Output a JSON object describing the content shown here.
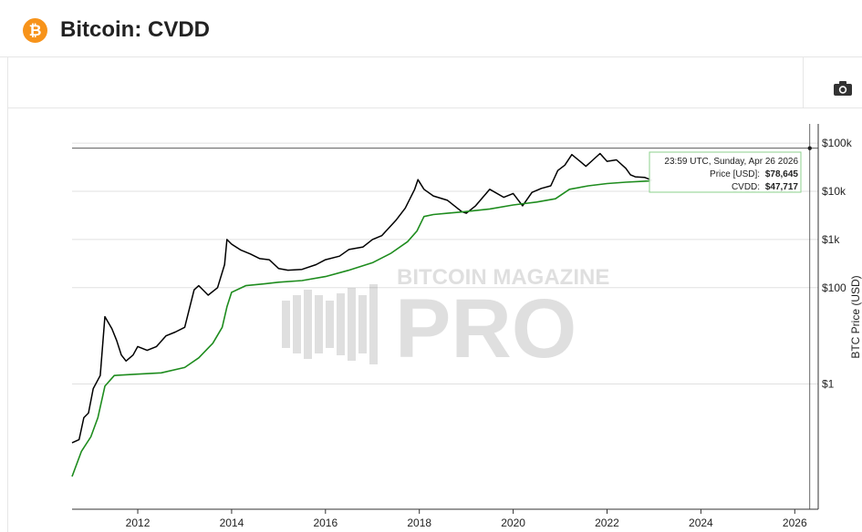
{
  "header": {
    "logo_symbol": "₿",
    "title": "Bitcoin: CVDD"
  },
  "toolbar": {
    "camera_icon": "camera-icon"
  },
  "watermark": {
    "line1": "BITCOIN MAGAZINE",
    "line2": "PRO"
  },
  "tooltip": {
    "date": "23:59 UTC, Sunday, Apr 26 2026",
    "price_label": "Price [USD]:",
    "price_value": "$78,645",
    "cvdd_label": "CVDD:",
    "cvdd_value": "$47,717"
  },
  "chart_data": {
    "type": "line",
    "y_scale": "log",
    "ylabel": "BTC Price (USD)",
    "xlim": [
      2010.6,
      2026.5
    ],
    "ylim_exp": [
      -2.6,
      5.4
    ],
    "x_ticks": [
      2012,
      2014,
      2016,
      2018,
      2020,
      2022,
      2024,
      2026
    ],
    "x_tick_labels": [
      "2012",
      "2014",
      "2016",
      "2018",
      "2020",
      "2022",
      "2024",
      "2026"
    ],
    "y_ticks": [
      1,
      100,
      1000,
      10000,
      100000
    ],
    "y_tick_labels": [
      "$1",
      "$100",
      "$1k",
      "$10k",
      "$100k"
    ],
    "colors": {
      "price": "#000000",
      "cvdd": "#1e8c1e",
      "grid": "#e0e0e0",
      "crosshair": "#444444",
      "tooltip_border": "#8cd28c"
    },
    "crosshair": {
      "x": 2026.32,
      "y": 78645
    },
    "series": [
      {
        "id": "price",
        "x": [
          2010.6,
          2010.75,
          2010.85,
          2010.95,
          2011.05,
          2011.2,
          2011.3,
          2011.45,
          2011.55,
          2011.65,
          2011.75,
          2011.9,
          2012.0,
          2012.2,
          2012.4,
          2012.6,
          2012.8,
          2013.0,
          2013.2,
          2013.3,
          2013.5,
          2013.7,
          2013.85,
          2013.9,
          2014.0,
          2014.2,
          2014.4,
          2014.6,
          2014.8,
          2015.0,
          2015.2,
          2015.5,
          2015.8,
          2016.0,
          2016.3,
          2016.5,
          2016.8,
          2017.0,
          2017.2,
          2017.5,
          2017.7,
          2017.9,
          2017.97,
          2018.1,
          2018.3,
          2018.6,
          2018.9,
          2019.0,
          2019.2,
          2019.5,
          2019.8,
          2020.0,
          2020.2,
          2020.4,
          2020.6,
          2020.8,
          2020.95,
          2021.1,
          2021.25,
          2021.45,
          2021.55,
          2021.7,
          2021.85,
          2022.0,
          2022.2,
          2022.4,
          2022.5,
          2022.6,
          2022.8,
          2022.95
        ],
        "y": [
          0.06,
          0.07,
          0.2,
          0.25,
          0.8,
          1.5,
          25,
          14,
          8,
          4,
          3,
          4,
          6,
          5,
          6,
          10,
          12,
          15,
          90,
          110,
          70,
          100,
          300,
          1000,
          800,
          600,
          500,
          400,
          380,
          250,
          230,
          240,
          300,
          380,
          450,
          620,
          700,
          1000,
          1200,
          2500,
          4500,
          11000,
          17500,
          11000,
          8000,
          6500,
          3800,
          3500,
          5000,
          11000,
          7500,
          9000,
          5000,
          9500,
          11500,
          13000,
          27000,
          35000,
          58000,
          40000,
          33000,
          45000,
          61000,
          42000,
          45000,
          30000,
          22000,
          20000,
          19500,
          17000
        ]
      },
      {
        "id": "cvdd",
        "x": [
          2010.6,
          2010.8,
          2011.0,
          2011.15,
          2011.3,
          2011.5,
          2012.0,
          2012.5,
          2013.0,
          2013.3,
          2013.6,
          2013.8,
          2013.9,
          2014.0,
          2014.3,
          2014.7,
          2015.0,
          2015.5,
          2016.0,
          2016.5,
          2017.0,
          2017.4,
          2017.75,
          2017.95,
          2018.1,
          2018.3,
          2018.6,
          2019.0,
          2019.5,
          2020.0,
          2020.5,
          2020.9,
          2021.2,
          2021.6,
          2022.0,
          2022.4,
          2022.8,
          2022.95
        ],
        "y": [
          0.012,
          0.04,
          0.08,
          0.2,
          0.9,
          1.5,
          1.6,
          1.7,
          2.2,
          3.5,
          7,
          15,
          40,
          80,
          110,
          120,
          130,
          140,
          170,
          230,
          330,
          520,
          900,
          1500,
          3000,
          3300,
          3500,
          3800,
          4300,
          5200,
          6000,
          7000,
          11000,
          13000,
          14500,
          15500,
          16200,
          16500
        ]
      }
    ]
  }
}
